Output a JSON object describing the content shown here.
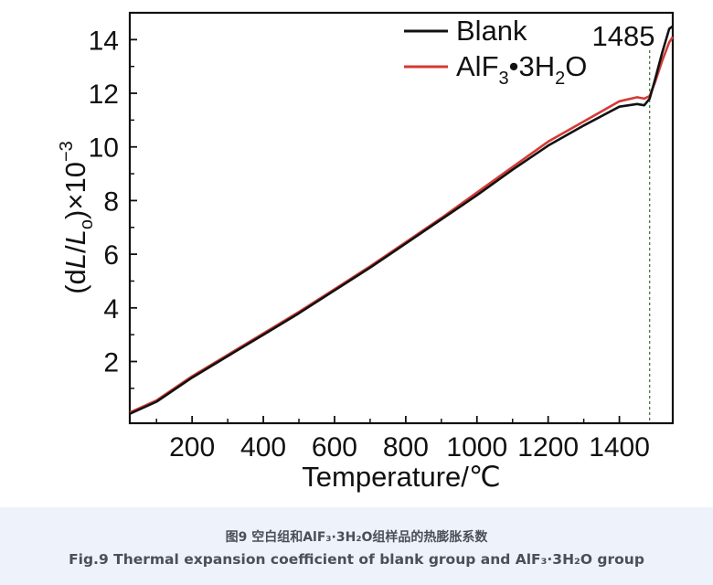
{
  "chart_data": {
    "type": "line",
    "xlabel": "Temperature/℃",
    "ylabel_parts": [
      "(d",
      "L",
      "/",
      "L",
      "o",
      ")×10",
      "−3"
    ],
    "xlim": [
      25,
      1550
    ],
    "ylim": [
      -0.3,
      15
    ],
    "xticks": [
      200,
      400,
      600,
      800,
      1000,
      1200,
      1400
    ],
    "yticks": [
      2,
      4,
      6,
      8,
      10,
      12,
      14
    ],
    "legend_position": "top-right",
    "grid": false,
    "series": [
      {
        "name": "Blank",
        "color": "#111111",
        "points": [
          [
            25,
            0.05
          ],
          [
            100,
            0.5
          ],
          [
            200,
            1.4
          ],
          [
            300,
            2.2
          ],
          [
            400,
            3.0
          ],
          [
            500,
            3.8
          ],
          [
            600,
            4.65
          ],
          [
            700,
            5.5
          ],
          [
            800,
            6.4
          ],
          [
            900,
            7.3
          ],
          [
            1000,
            8.2
          ],
          [
            1100,
            9.15
          ],
          [
            1200,
            10.05
          ],
          [
            1300,
            10.8
          ],
          [
            1400,
            11.5
          ],
          [
            1450,
            11.6
          ],
          [
            1470,
            11.55
          ],
          [
            1485,
            11.8
          ],
          [
            1500,
            12.5
          ],
          [
            1520,
            13.5
          ],
          [
            1540,
            14.4
          ],
          [
            1550,
            14.5
          ]
        ]
      },
      {
        "name_parts": [
          "AlF",
          "3",
          "•3H",
          "2",
          "O"
        ],
        "color": "#d43a35",
        "points": [
          [
            25,
            0.1
          ],
          [
            100,
            0.55
          ],
          [
            200,
            1.45
          ],
          [
            300,
            2.25
          ],
          [
            400,
            3.05
          ],
          [
            500,
            3.85
          ],
          [
            600,
            4.7
          ],
          [
            700,
            5.55
          ],
          [
            800,
            6.45
          ],
          [
            900,
            7.35
          ],
          [
            1000,
            8.3
          ],
          [
            1100,
            9.25
          ],
          [
            1200,
            10.2
          ],
          [
            1300,
            10.95
          ],
          [
            1400,
            11.7
          ],
          [
            1450,
            11.85
          ],
          [
            1470,
            11.8
          ],
          [
            1485,
            11.9
          ],
          [
            1500,
            12.4
          ],
          [
            1520,
            13.2
          ],
          [
            1540,
            13.9
          ],
          [
            1550,
            14.1
          ]
        ]
      }
    ],
    "annotation": {
      "label": "1485",
      "x": 1485
    }
  },
  "caption": {
    "zh": "图9 空白组和AlF₃·3H₂O组样品的热膨胀系数",
    "en": "Fig.9 Thermal expansion coefficient of blank group and AlF₃·3H₂O group"
  }
}
